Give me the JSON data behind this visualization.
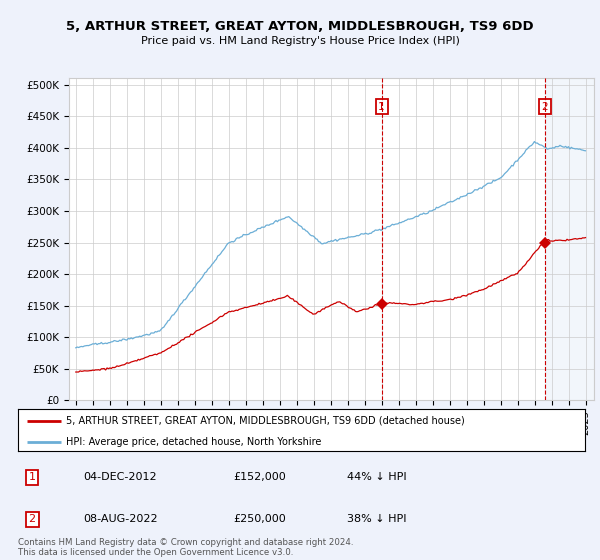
{
  "title": "5, ARTHUR STREET, GREAT AYTON, MIDDLESBROUGH, TS9 6DD",
  "subtitle": "Price paid vs. HM Land Registry's House Price Index (HPI)",
  "ylabel_ticks": [
    "£0",
    "£50K",
    "£100K",
    "£150K",
    "£200K",
    "£250K",
    "£300K",
    "£350K",
    "£400K",
    "£450K",
    "£500K"
  ],
  "ytick_values": [
    0,
    50000,
    100000,
    150000,
    200000,
    250000,
    300000,
    350000,
    400000,
    450000,
    500000
  ],
  "x_start_year": 1995,
  "x_end_year": 2025,
  "hpi_color": "#6baed6",
  "price_color": "#cc0000",
  "sale1_x": 2013.0,
  "sale2_x": 2022.6,
  "sale1_price": 152000,
  "sale2_price": 250000,
  "sale1_label": "04-DEC-2012",
  "sale2_label": "08-AUG-2022",
  "sale1_pct": "44% ↓ HPI",
  "sale2_pct": "38% ↓ HPI",
  "legend_line1": "5, ARTHUR STREET, GREAT AYTON, MIDDLESBROUGH, TS9 6DD (detached house)",
  "legend_line2": "HPI: Average price, detached house, North Yorkshire",
  "footnote": "Contains HM Land Registry data © Crown copyright and database right 2024.\nThis data is licensed under the Open Government Licence v3.0.",
  "bg_color": "#eef2fb",
  "plot_bg": "#ffffff",
  "shade_color": "#dce8f5",
  "vline_color": "#cc0000",
  "grid_color": "#cccccc"
}
